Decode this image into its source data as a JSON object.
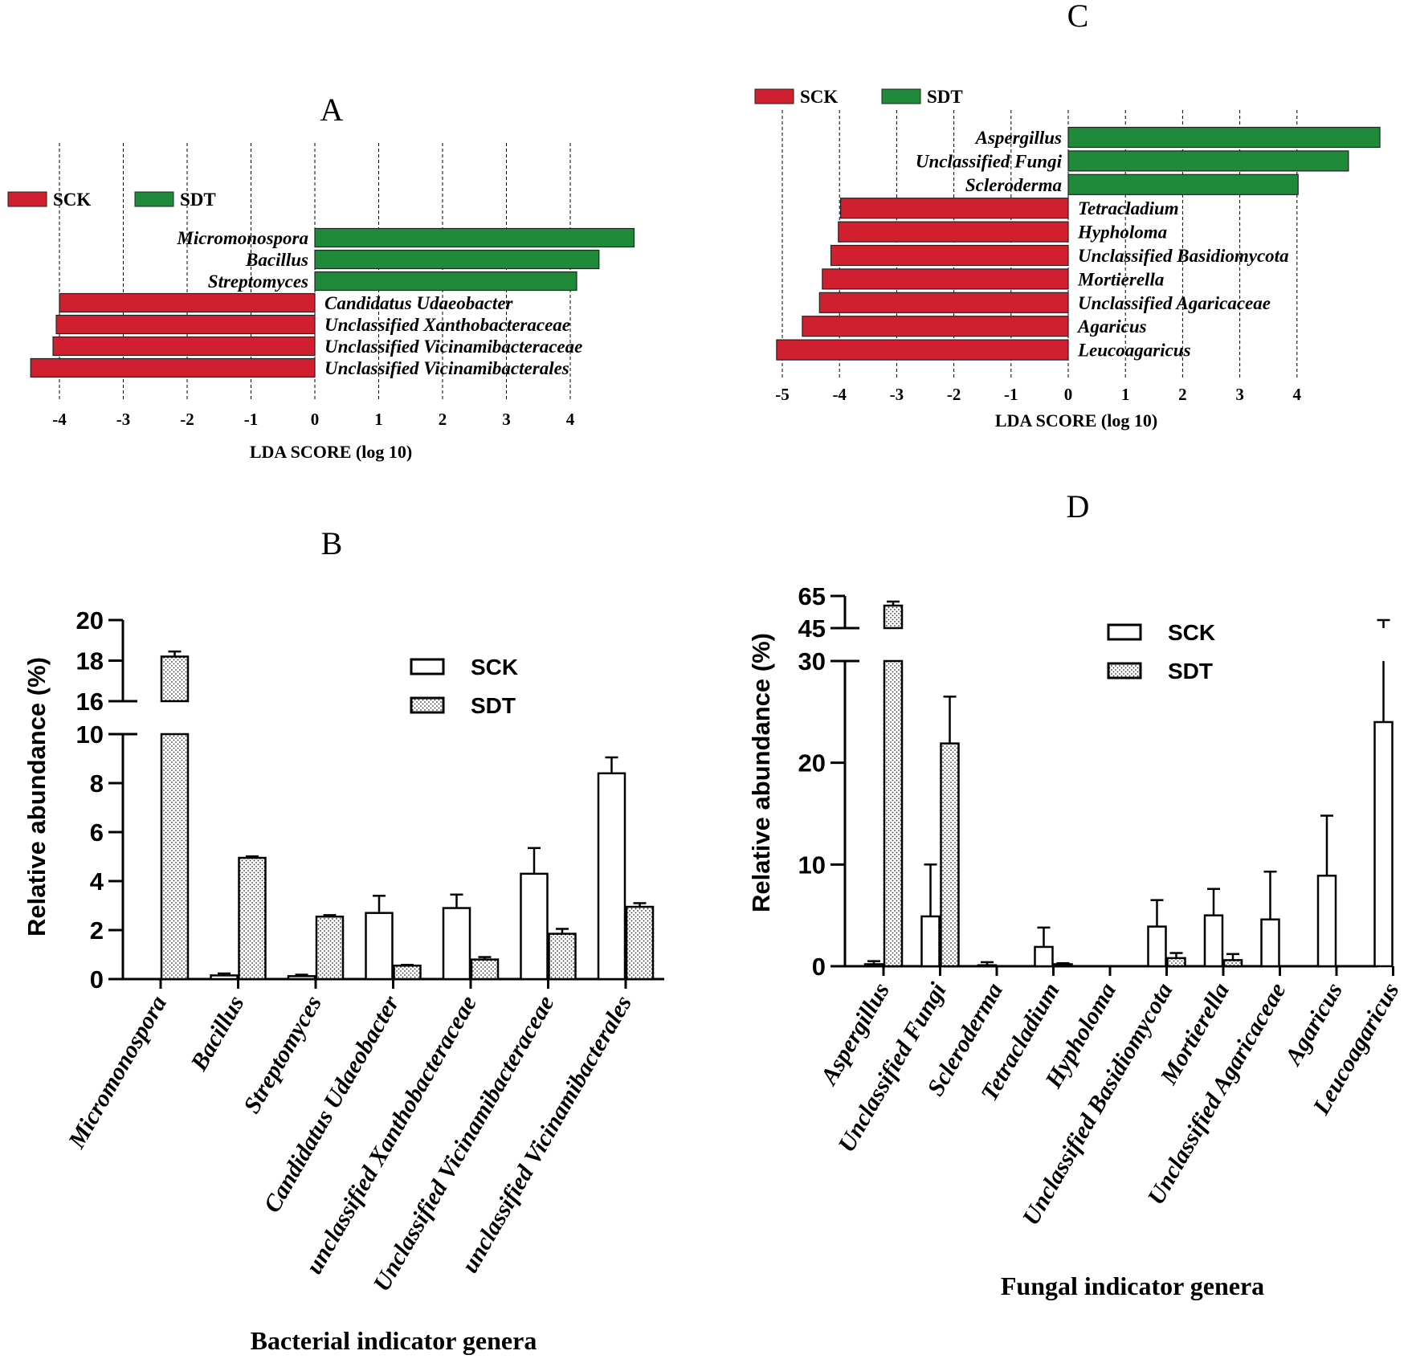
{
  "chart_data": [
    {
      "panel": "A",
      "type": "bar",
      "orientation": "horizontal",
      "title": "A",
      "xlabel": "LDA SCORE (log 10)",
      "xticks": [
        -4,
        -3,
        -2,
        -1,
        0,
        1,
        2,
        3,
        4
      ],
      "xlim": [
        -4.5,
        5
      ],
      "legend": [
        {
          "name": "SCK",
          "color": "#d02030"
        },
        {
          "name": "SDT",
          "color": "#1e8a3a"
        }
      ],
      "bars": [
        {
          "label": "Micromonospora",
          "group": "SDT",
          "value": 5.0
        },
        {
          "label": "Bacillus",
          "group": "SDT",
          "value": 4.45
        },
        {
          "label": "Streptomyces",
          "group": "SDT",
          "value": 4.1
        },
        {
          "label": "Candidatus Udaeobacter",
          "group": "SCK",
          "value": -4.0
        },
        {
          "label": "Unclassified Xanthobacteraceae",
          "group": "SCK",
          "value": -4.05
        },
        {
          "label": "Unclassified Vicinamibacteraceae",
          "group": "SCK",
          "value": -4.1
        },
        {
          "label": "Unclassified Vicinamibacterales",
          "group": "SCK",
          "value": -4.45
        }
      ]
    },
    {
      "panel": "B",
      "type": "bar",
      "title": "B",
      "xlabel": "Bacterial indicator genera",
      "ylabel": "Relative abundance (%)",
      "axis_break": {
        "lower": [
          0,
          10
        ],
        "upper": [
          16,
          20
        ]
      },
      "yticks_lower": [
        0,
        2,
        4,
        6,
        8,
        10
      ],
      "yticks_upper": [
        16,
        18,
        20
      ],
      "categories": [
        "Micromonospora",
        "Bacillus",
        "Streptomyces",
        "Candidatus Udaeobacter",
        "unclassified Xanthobacteraceae",
        "Unclassified Vicinamibacteraceae",
        "unclassified Vicinamibacterales"
      ],
      "series": [
        {
          "name": "SCK",
          "style": "open",
          "values": [
            0,
            0.15,
            0.12,
            2.7,
            2.9,
            4.3,
            8.4
          ],
          "errors": [
            0,
            0.08,
            0.06,
            0.7,
            0.55,
            1.05,
            0.65
          ]
        },
        {
          "name": "SDT",
          "style": "dotted",
          "values": [
            18.2,
            4.95,
            2.55,
            0.55,
            0.8,
            1.85,
            2.95
          ],
          "errors": [
            0.25,
            0.06,
            0.06,
            0.03,
            0.1,
            0.2,
            0.15
          ]
        }
      ]
    },
    {
      "panel": "C",
      "type": "bar",
      "orientation": "horizontal",
      "title": "C",
      "xlabel": "LDA SCORE (log 10)",
      "xticks": [
        -5,
        -4,
        -3,
        -2,
        -1,
        0,
        1,
        2,
        3,
        4
      ],
      "xlim": [
        -5.1,
        5.5
      ],
      "legend": [
        {
          "name": "SCK",
          "color": "#d02030"
        },
        {
          "name": "SDT",
          "color": "#1e8a3a"
        }
      ],
      "bars": [
        {
          "label": "Aspergillus",
          "group": "SDT",
          "value": 5.45
        },
        {
          "label": "Unclassified Fungi",
          "group": "SDT",
          "value": 4.9
        },
        {
          "label": "Scleroderma",
          "group": "SDT",
          "value": 4.02
        },
        {
          "label": "Tetracladium",
          "group": "SCK",
          "value": -3.98
        },
        {
          "label": "Hypholoma",
          "group": "SCK",
          "value": -4.02
        },
        {
          "label": "Unclassified Basidiomycota",
          "group": "SCK",
          "value": -4.15
        },
        {
          "label": "Mortierella",
          "group": "SCK",
          "value": -4.3
        },
        {
          "label": "Unclassified Agaricaceae",
          "group": "SCK",
          "value": -4.35
        },
        {
          "label": "Agaricus",
          "group": "SCK",
          "value": -4.65
        },
        {
          "label": "Leucoagaricus",
          "group": "SCK",
          "value": -5.1
        }
      ]
    },
    {
      "panel": "D",
      "type": "bar",
      "title": "D",
      "xlabel": "Fungal indicator genera",
      "ylabel": "Relative abundance (%)",
      "axis_break": {
        "lower": [
          0,
          30
        ],
        "upper": [
          45,
          65
        ]
      },
      "yticks_lower": [
        0,
        10,
        20,
        30
      ],
      "yticks_upper": [
        45,
        65
      ],
      "categories": [
        "Aspergillus",
        "Unclassified Fungi",
        "Scleroderma",
        "Tetracladium",
        "Hypholoma",
        "Unclassified Basidiomycota",
        "Mortierella",
        "Unclassified Agaricaceae",
        "Agaricus",
        "Leucoagaricus"
      ],
      "series": [
        {
          "name": "SCK",
          "style": "open",
          "values": [
            0.2,
            4.9,
            0.1,
            1.9,
            0,
            3.9,
            5.0,
            4.6,
            8.9,
            24.0
          ],
          "errors": [
            0.3,
            5.1,
            0.3,
            1.9,
            0,
            2.6,
            2.6,
            4.7,
            5.9,
            26.0
          ]
        },
        {
          "name": "SDT",
          "style": "dotted",
          "values": [
            59,
            21.9,
            0,
            0.2,
            0,
            0.8,
            0.6,
            0,
            0,
            0
          ],
          "errors": [
            2.5,
            4.6,
            0,
            0.1,
            0,
            0.5,
            0.6,
            0,
            0,
            0
          ]
        }
      ]
    }
  ]
}
